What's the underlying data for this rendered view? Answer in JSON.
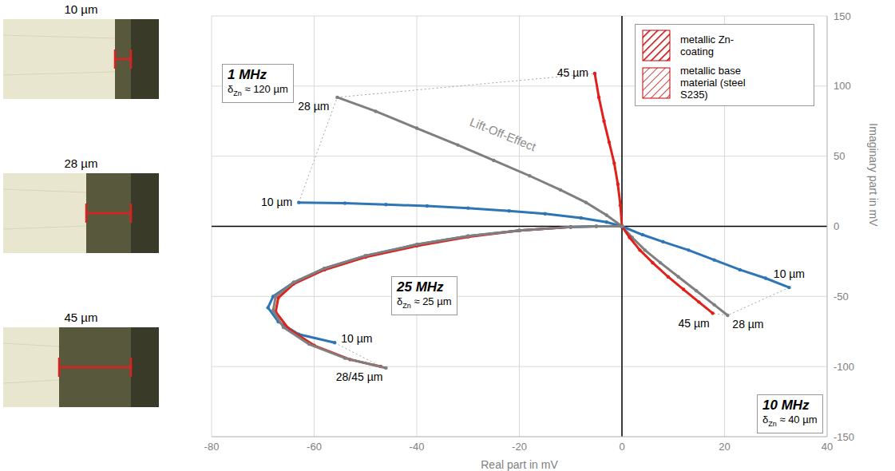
{
  "micrographs": [
    {
      "title": "10 µm",
      "thickness": 10
    },
    {
      "title": "28 µm",
      "thickness": 28
    },
    {
      "title": "45 µm",
      "thickness": 45
    }
  ],
  "chart_data": {
    "type": "scatter",
    "x_label": "Real part in mV",
    "y_label": "Imaginary part in mV",
    "xlim": [
      -80,
      40
    ],
    "xticks": [
      -80,
      -60,
      -40,
      -20,
      0,
      20,
      40
    ],
    "ylim": [
      -150,
      150
    ],
    "yticks": [
      -150,
      -100,
      -50,
      0,
      50,
      100,
      150
    ],
    "grid": true,
    "axes_cross": [
      0,
      0
    ],
    "marker": "dot",
    "line_style": "solid",
    "legend": "top-right",
    "legend_items": [
      {
        "label": "metallic Zn-coating",
        "color": "#c00000"
      },
      {
        "label": "metallic base material (steel S235)",
        "color": "#c00000"
      }
    ],
    "frequencies": [
      {
        "label": "1 MHz",
        "symbol": "δ",
        "subscript": "Zn",
        "text": "≈ 120 µm"
      },
      {
        "label": "10 MHz",
        "symbol": "δ",
        "subscript": "Zn",
        "text": "≈ 40 µm"
      },
      {
        "label": "25 MHz",
        "symbol": "δ",
        "subscript": "Zn",
        "text": "≈ 25 µm"
      }
    ],
    "annotations": [
      {
        "text": "Lift-Off-Effect"
      }
    ],
    "series": [
      {
        "group": "1 MHz",
        "color": "#2e75b6",
        "end_label": "10 µm",
        "x": [
          0,
          -3,
          -8,
          -15,
          -22,
          -30,
          -38,
          -46,
          -54,
          -63
        ],
        "y": [
          0,
          3,
          6,
          9,
          11,
          13,
          14.5,
          15.5,
          16.5,
          17
        ]
      },
      {
        "group": "1 MHz",
        "color": "#7f7f7f",
        "end_label": "28 µm",
        "x": [
          0,
          -3,
          -7,
          -12,
          -18,
          -25,
          -32,
          -40,
          -48,
          -55.5
        ],
        "y": [
          0,
          8,
          17,
          26,
          36,
          47,
          58,
          70,
          82,
          92
        ]
      },
      {
        "group": "1 MHz",
        "color": "#e0201b",
        "end_label": "45 µm",
        "x": [
          0,
          -0.3,
          -0.8,
          -1.5,
          -2.5,
          -3.5,
          -4.5,
          -5.3
        ],
        "y": [
          0,
          15,
          30,
          45,
          60,
          75,
          92,
          109
        ]
      },
      {
        "group": "10 MHz",
        "color": "#2e75b6",
        "end_label": "10 µm",
        "x": [
          0,
          4,
          8,
          13,
          18,
          23,
          28,
          32.6
        ],
        "y": [
          0,
          -6,
          -11,
          -17,
          -24,
          -31,
          -37,
          -43.6
        ]
      },
      {
        "group": "10 MHz",
        "color": "#7f7f7f",
        "end_label": "28 µm",
        "x": [
          0,
          2,
          4.5,
          7.5,
          11,
          14.5,
          18,
          20.6
        ],
        "y": [
          0,
          -8,
          -17,
          -26,
          -36,
          -46,
          -56,
          -63.5
        ]
      },
      {
        "group": "10 MHz",
        "color": "#e0201b",
        "end_label": "45 µm",
        "x": [
          0,
          1.5,
          3.5,
          6,
          9,
          12,
          15,
          17.7
        ],
        "y": [
          0,
          -8,
          -17,
          -26,
          -36,
          -45,
          -54,
          -62
        ]
      },
      {
        "group": "25 MHz",
        "color": "#2e75b6",
        "end_label": "10 µm",
        "x": [
          0,
          -5,
          -10,
          -20,
          -30,
          -40,
          -50,
          -58,
          -64,
          -68,
          -69,
          -67,
          -63,
          -56
        ],
        "y": [
          0,
          0,
          -0.5,
          -3,
          -7,
          -13,
          -21,
          -30,
          -40,
          -50,
          -58,
          -68,
          -77,
          -83
        ]
      },
      {
        "group": "25 MHz",
        "color": "#e0201b",
        "x": [
          -10,
          -20,
          -30,
          -40,
          -50,
          -58,
          -64,
          -67,
          -67.5,
          -65,
          -60,
          -53,
          -47
        ],
        "y": [
          -0.5,
          -3,
          -7.5,
          -14,
          -22,
          -31,
          -41,
          -51,
          -61,
          -73,
          -85,
          -95,
          -100
        ]
      },
      {
        "group": "25 MHz",
        "color": "#7f7f7f",
        "end_label": "28/45 µm",
        "x": [
          0,
          -5,
          -10,
          -20,
          -30,
          -40,
          -50,
          -58,
          -64,
          -67.5,
          -68,
          -66,
          -61,
          -54,
          -46
        ],
        "y": [
          0,
          0,
          -0.5,
          -3,
          -7,
          -13,
          -21,
          -30,
          -40,
          -50,
          -60,
          -72,
          -84,
          -94,
          -101
        ]
      }
    ]
  }
}
